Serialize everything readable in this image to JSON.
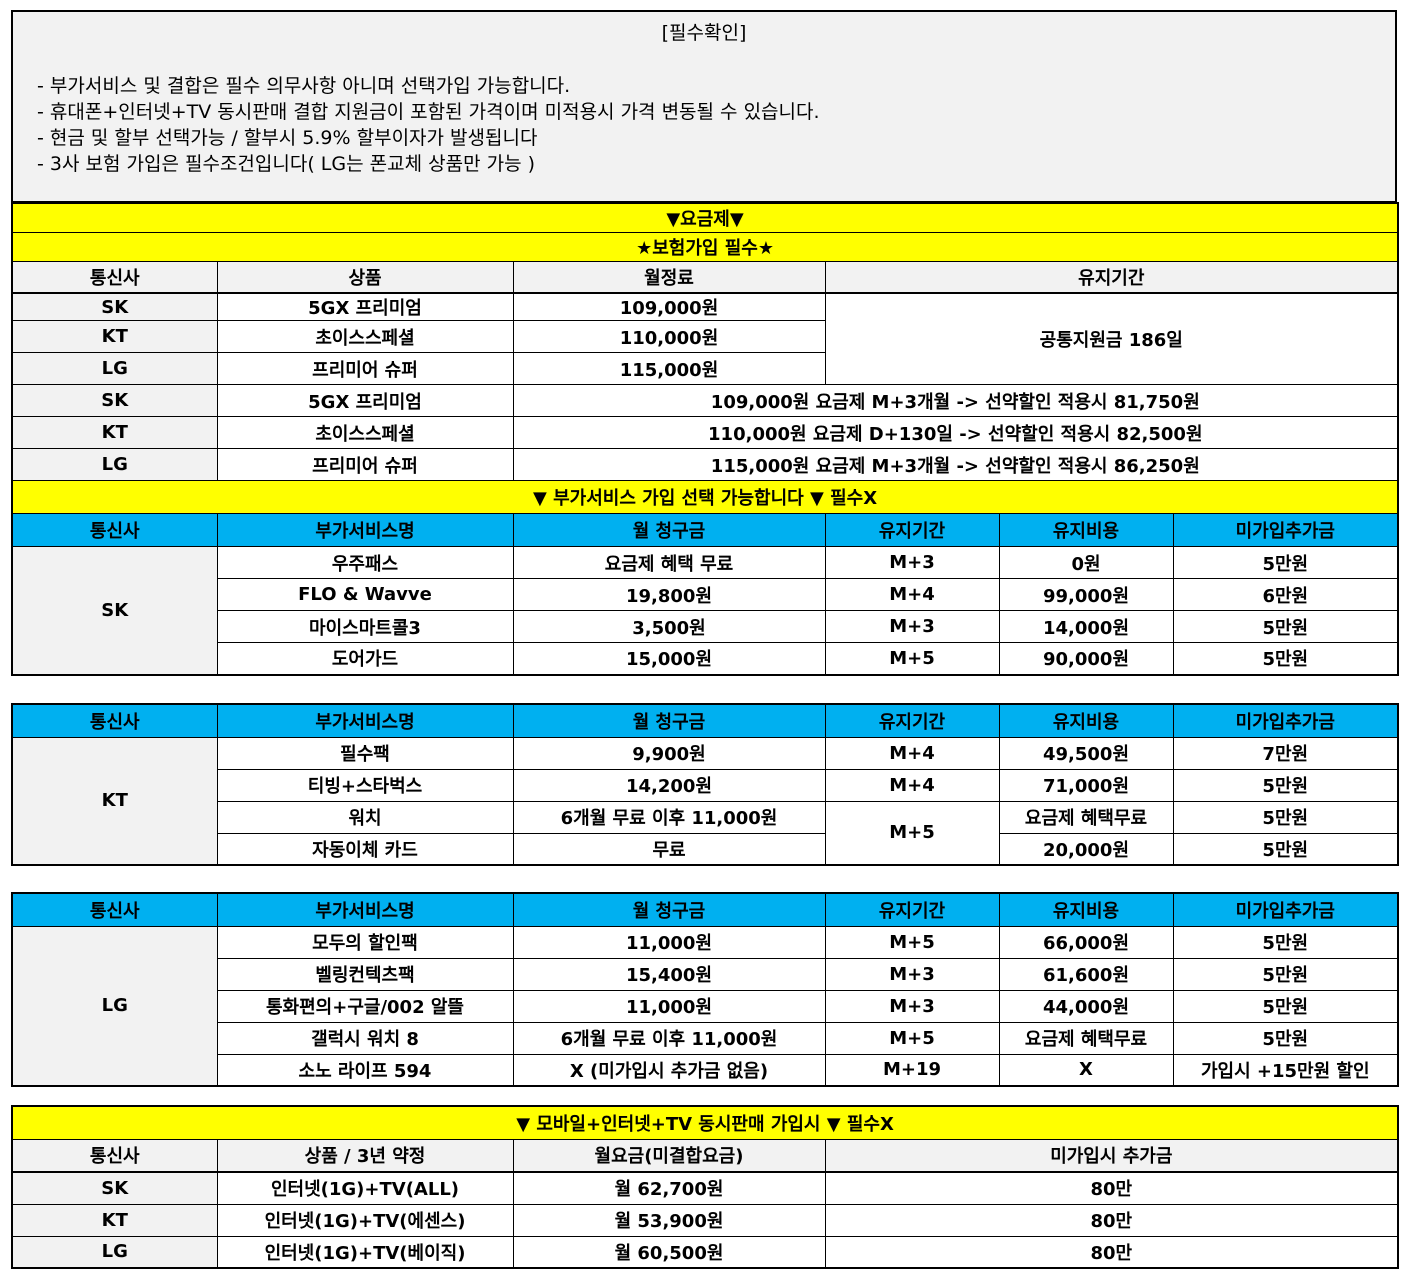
{
  "notice": {
    "title": "[필수확인]",
    "lines": [
      "- 부가서비스 및 결합은 필수 의무사항 아니며 선택가입 가능합니다.",
      "- 휴대폰+인터넷+TV 동시판매 결합 지원금이 포함된 가격이며 미적용시 가격 변동될 수 있습니다.",
      "- 현금 및 할부 선택가능 / 할부시 5.9% 할부이자가 발생됩니다",
      "- 3사 보험 가입은 필수조건입니다( LG는 폰교체 상품만 가능 )"
    ]
  },
  "plans": {
    "banner": "▼요금제▼",
    "insurance_banner": "★보험가입 필수★",
    "headers": [
      "통신사",
      "상품",
      "월정료",
      "유지기간"
    ],
    "rows": [
      {
        "carrier": "SK",
        "product": "5GX 프리미엄",
        "fee": "109,000원"
      },
      {
        "carrier": "KT",
        "product": "초이스스페셜",
        "fee": "110,000원"
      },
      {
        "carrier": "LG",
        "product": "프리미어 슈퍼",
        "fee": "115,000원"
      }
    ],
    "retention_common": "공통지원금 186일",
    "discount_rows": [
      {
        "carrier": "SK",
        "product": "5GX 프리미엄",
        "text": "109,000원 요금제 M+3개월 -> 선약할인 적용시 81,750원"
      },
      {
        "carrier": "KT",
        "product": "초이스스페셜",
        "text": "110,000원 요금제 D+130일 -> 선약할인 적용시 82,500원"
      },
      {
        "carrier": "LG",
        "product": "프리미어 슈퍼",
        "text": "115,000원 요금제 M+3개월 -> 선약할인 적용시 86,250원"
      }
    ]
  },
  "addons": {
    "banner": "▼ 부가서비스 가입 선택 가능합니다 ▼ 필수X",
    "headers": [
      "통신사",
      "부가서비스명",
      "월 청구금",
      "유지기간",
      "유지비용",
      "미가입추가금"
    ],
    "groups": [
      {
        "carrier": "SK",
        "rows": [
          [
            "우주패스",
            "요금제 혜택 무료",
            "M+3",
            "0원",
            "5만원"
          ],
          [
            "FLO & Wavve",
            "19,800원",
            "M+4",
            "99,000원",
            "6만원"
          ],
          [
            "마이스마트콜3",
            "3,500원",
            "M+3",
            "14,000원",
            "5만원"
          ],
          [
            "도어가드",
            "15,000원",
            "M+5",
            "90,000원",
            "5만원"
          ]
        ]
      },
      {
        "carrier": "KT",
        "rows": [
          [
            "필수팩",
            "9,900원",
            "M+4",
            "49,500원",
            "7만원"
          ],
          [
            "티빙+스타벅스",
            "14,200원",
            "M+4",
            "71,000원",
            "5만원"
          ],
          [
            "워치",
            "6개월 무료 이후 11,000원",
            "M+5",
            "요금제 혜택무료",
            "5만원"
          ],
          [
            "자동이체 카드",
            "무료",
            null,
            "20,000원",
            "5만원"
          ]
        ]
      },
      {
        "carrier": "LG",
        "rows": [
          [
            "모두의 할인팩",
            "11,000원",
            "M+5",
            "66,000원",
            "5만원"
          ],
          [
            "벨링컨텍츠팩",
            "15,400원",
            "M+3",
            "61,600원",
            "5만원"
          ],
          [
            "통화편의+구글/002 알뜰",
            "11,000원",
            "M+3",
            "44,000원",
            "5만원"
          ],
          [
            "갤럭시 워치 8",
            "6개월 무료 이후 11,000원",
            "M+5",
            "요금제 혜택무료",
            "5만원"
          ],
          [
            "소노 라이프 594",
            "X (미가입시 추가금 없음)",
            "M+19",
            "X",
            "가입시 +15만원 할인"
          ]
        ]
      }
    ]
  },
  "bundle": {
    "banner": "▼ 모바일+인터넷+TV 동시판매 가입시 ▼ 필수X",
    "headers": [
      "통신사",
      "상품 / 3년 약정",
      "월요금(미결합요금)",
      "미가입시 추가금"
    ],
    "rows": [
      [
        "SK",
        "인터넷(1G)+TV(ALL)",
        "월 62,700원",
        "80만"
      ],
      [
        "KT",
        "인터넷(1G)+TV(에센스)",
        "월 53,900원",
        "80만"
      ],
      [
        "LG",
        "인터넷(1G)+TV(베이직)",
        "월 60,500원",
        "80만"
      ]
    ]
  },
  "colors": {
    "banner": "#ffff00",
    "header_blue": "#00b0f0",
    "header_gray": "#f2f2f2"
  }
}
